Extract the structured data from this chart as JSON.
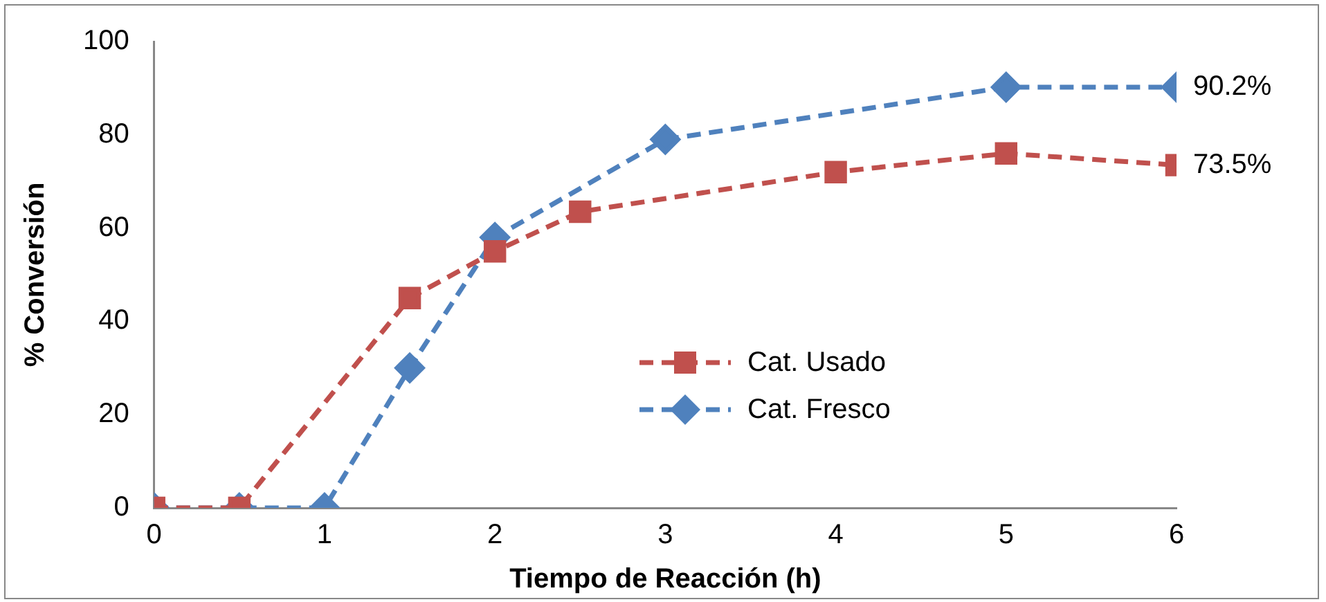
{
  "chart_data": {
    "type": "line",
    "xlabel": "Tiempo de Reacción (h)",
    "ylabel": "% Conversión",
    "xlim": [
      0,
      6
    ],
    "xticks": [
      0,
      1,
      2,
      3,
      4,
      5,
      6
    ],
    "ylim": [
      0,
      100
    ],
    "yticks": [
      0,
      20,
      40,
      60,
      80,
      100
    ],
    "grid": false,
    "legend": "center right",
    "line_style": "dashed",
    "series": [
      {
        "name": "Cat. Usado",
        "color": "#c0504d",
        "marker": "square",
        "x": [
          0,
          0.5,
          1.5,
          2,
          2.5,
          4,
          5,
          6
        ],
        "values": [
          0,
          0,
          45,
          55,
          63.5,
          72,
          76,
          73.5
        ],
        "value_labels": [
          null,
          null,
          null,
          null,
          null,
          null,
          null,
          "73.5%"
        ]
      },
      {
        "name": "Cat. Fresco",
        "color": "#4f81bd",
        "marker": "diamond",
        "x": [
          0,
          0.5,
          1,
          1.5,
          2,
          3,
          5,
          6
        ],
        "values": [
          0,
          0,
          0,
          30,
          58,
          79,
          90.2,
          90.2
        ],
        "value_labels": [
          null,
          null,
          null,
          null,
          null,
          null,
          null,
          "90.2%"
        ]
      }
    ]
  }
}
